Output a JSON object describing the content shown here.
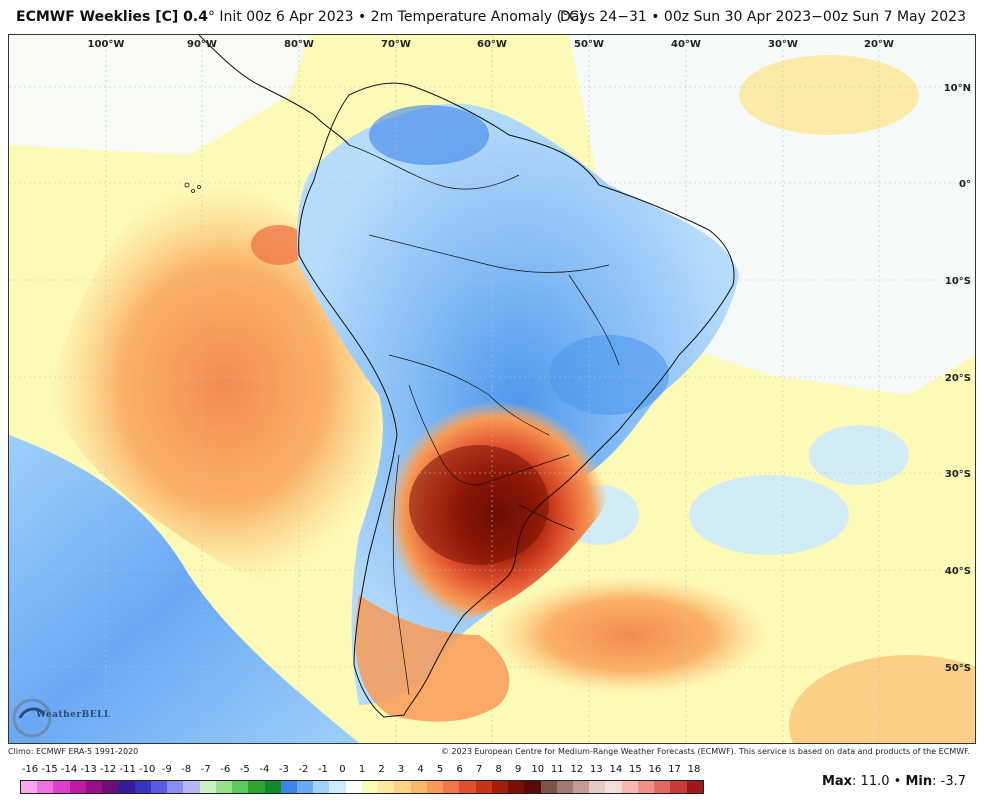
{
  "header": {
    "model_title": "ECMWF Weeklies [C] 0.4",
    "init": "° Init 00z 6 Apr 2023 • 2m Temperature Anomaly (°C)",
    "valid": "Days 24−31 • 00z Sun 30 Apr 2023−00z Sun 7 May 2023"
  },
  "map": {
    "lon_labels": [
      "100°W",
      "90°W",
      "80°W",
      "70°W",
      "60°W",
      "50°W",
      "40°W",
      "30°W",
      "20°W"
    ],
    "lat_labels": [
      "10°N",
      "0°",
      "10°S",
      "20°S",
      "30°S",
      "40°S",
      "50°S"
    ],
    "warm_core": {
      "region": "central Argentina / Uruguay / southern Brazil",
      "max_anomaly": 11.0
    },
    "cool_core": {
      "region": "Amazon / Brazil interior and Southeast Pacific",
      "min_anomaly": -3.7
    }
  },
  "credits": {
    "climo": "Climo: ECMWF ERA-5 1991-2020",
    "copyright": "© 2023 European Centre for Medium-Range Weather Forecasts (ECMWF). This service is based on data and products of the ECMWF."
  },
  "legend": {
    "ticks": [
      "-16",
      "-15",
      "-14",
      "-13",
      "-12",
      "-11",
      "-10",
      "-9",
      "-8",
      "-7",
      "-6",
      "-5",
      "-4",
      "-3",
      "-2",
      "-1",
      "0",
      "1",
      "2",
      "3",
      "4",
      "5",
      "6",
      "7",
      "8",
      "9",
      "10",
      "11",
      "12",
      "13",
      "14",
      "15",
      "16",
      "17",
      "18"
    ],
    "colors": [
      "#f9a8ee",
      "#ee72dd",
      "#dd3fca",
      "#c21aa8",
      "#9a0e88",
      "#6b0e76",
      "#3a1a96",
      "#3535c0",
      "#5b5be0",
      "#8a8ef0",
      "#b4b8f4",
      "#c8f0c0",
      "#92e08a",
      "#5cc85a",
      "#2ea62e",
      "#118a2a",
      "#3c84e8",
      "#6aa8f4",
      "#9ed0fa",
      "#cdeafc",
      "#ffffff",
      "#fdf9b8",
      "#fde8a0",
      "#fdd386",
      "#fcb86a",
      "#f89a56",
      "#f07848",
      "#e0502e",
      "#c83418",
      "#a01e08",
      "#7a1004",
      "#5a0a08",
      "#7a5448",
      "#a07a70",
      "#c89a94",
      "#e8c8c4",
      "#f4dcd8",
      "#f8b8b0",
      "#f09088",
      "#e06a60",
      "#c83c38",
      "#a0181c"
    ]
  },
  "stats": {
    "max_label": "Max",
    "max_value": ": 11.0",
    "sep": " • ",
    "min_label": "Min",
    "min_value": ": -3.7"
  },
  "logo": {
    "text": "WeatherBELL"
  }
}
